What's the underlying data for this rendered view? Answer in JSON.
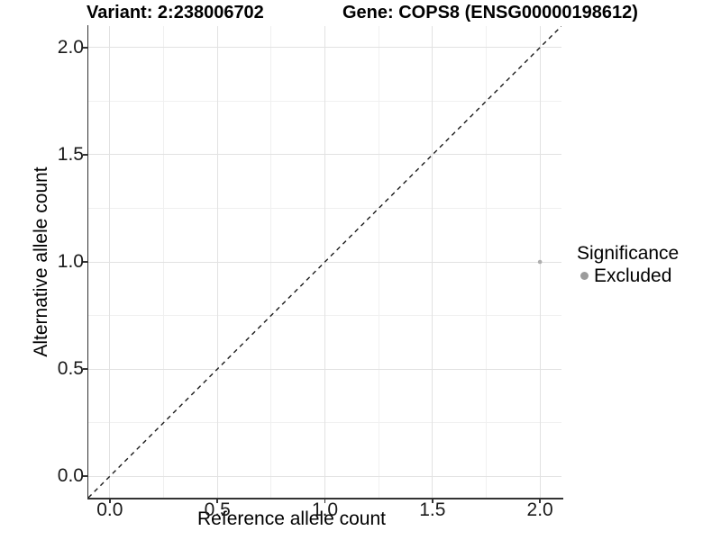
{
  "header": {
    "variant_title": "Variant: 2:238006702",
    "gene_title": "Gene: COPS8 (ENSG00000198612)"
  },
  "chart_data": {
    "type": "scatter",
    "title": "Variant: 2:238006702   Gene: COPS8 (ENSG00000198612)",
    "xlabel": "Reference allele count",
    "ylabel": "Alternative allele count",
    "xlim": [
      -0.1,
      2.1
    ],
    "ylim": [
      -0.1,
      2.1
    ],
    "x_major_ticks": [
      0.0,
      0.5,
      1.0,
      1.5,
      2.0
    ],
    "x_tick_labels": [
      "0.0",
      "0.5",
      "1.0",
      "1.5",
      "2.0"
    ],
    "y_major_ticks": [
      0.0,
      0.5,
      1.0,
      1.5,
      2.0
    ],
    "y_tick_labels": [
      "0.0",
      "0.5",
      "1.0",
      "1.5",
      "2.0"
    ],
    "minor_ticks": [
      0.25,
      0.75,
      1.25,
      1.75
    ],
    "grid": "major and minor gridlines on",
    "reference_line": {
      "type": "identity y=x",
      "style": "dashed",
      "color": "#1a1a1a"
    },
    "series": [
      {
        "name": "Excluded",
        "color": "#afafaf",
        "points": [
          {
            "x": 2.0,
            "y": 1.0
          }
        ],
        "point_radius": 2.3
      }
    ],
    "legend": {
      "title": "Significance",
      "position": "right",
      "entries": [
        {
          "label": "Excluded",
          "color": "#9c9c9c"
        }
      ]
    },
    "colors": {
      "grid_major": "#e2e2e2",
      "grid_minor": "#f0f0f0",
      "axis_line": "#333333",
      "tick_text": "#1a1a1a"
    }
  }
}
